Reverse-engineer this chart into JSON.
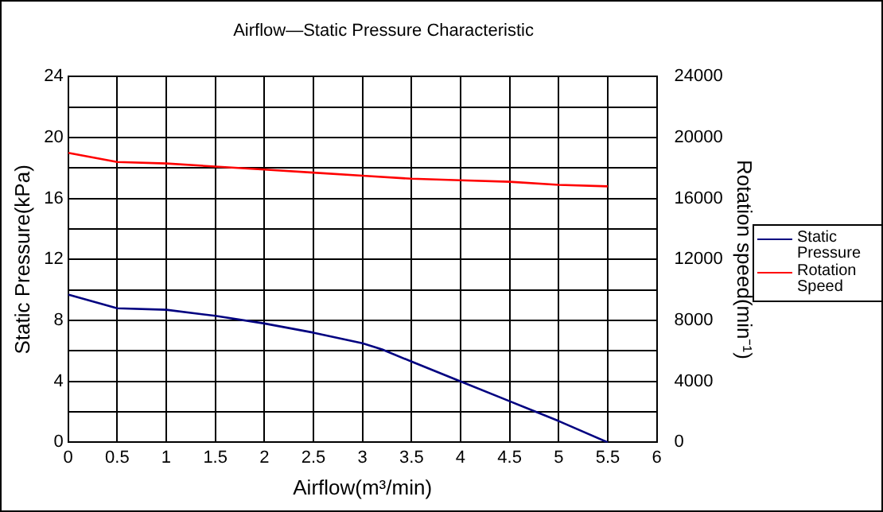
{
  "chart_data": {
    "type": "line",
    "title": "Airflow—Static Pressure Characteristic",
    "xlabel": "Airflow(m³/min)",
    "ylabel": "Static Pressure(kPa)",
    "y2label": "Rotation speed(min⁻¹)",
    "series": [
      {
        "name": "Static Pressure",
        "color": "#000080",
        "x": [
          0,
          0.5,
          1,
          1.5,
          2,
          2.5,
          3,
          3.2,
          3.5,
          4,
          4.5,
          5,
          5.5
        ],
        "values": [
          9.7,
          8.8,
          8.7,
          8.3,
          7.8,
          7.2,
          6.5,
          6.1,
          5.3,
          4.0,
          2.7,
          1.4,
          0
        ]
      },
      {
        "name": "Rotation Speed",
        "color": "#ff0000",
        "axis": "y2",
        "x": [
          0,
          0.5,
          1,
          1.5,
          2,
          2.5,
          3,
          3.5,
          4,
          4.5,
          5,
          5.5
        ],
        "values": [
          19000,
          18400,
          18300,
          18100,
          17900,
          17700,
          17500,
          17300,
          17200,
          17100,
          16900,
          16800
        ]
      }
    ],
    "xlim": [
      0,
      6
    ],
    "xticks": [
      0,
      0.5,
      1,
      1.5,
      2,
      2.5,
      3,
      3.5,
      4,
      4.5,
      5,
      5.5,
      6
    ],
    "ylim": [
      0,
      24
    ],
    "yticks": [
      0,
      {
        "value": 2,
        "label": null
      },
      4,
      {
        "value": 6,
        "label": null
      },
      8,
      {
        "value": 10,
        "label": null
      },
      12,
      {
        "value": 14,
        "label": null
      },
      16,
      {
        "value": 18,
        "label": null
      },
      20,
      {
        "value": 22,
        "label": null
      },
      24
    ],
    "y2lim": [
      0,
      24000
    ],
    "y2ticks": [
      0,
      4000,
      8000,
      12000,
      16000,
      20000,
      24000
    ],
    "grid": true,
    "legend": "right",
    "marker": "none",
    "line_style": "solid"
  }
}
